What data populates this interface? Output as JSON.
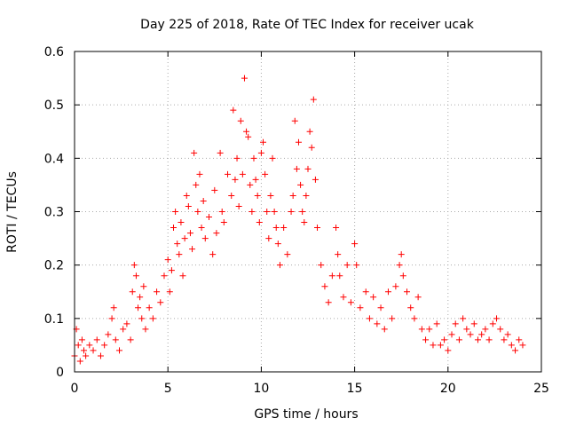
{
  "chart_data": {
    "type": "scatter",
    "title": "Day 225 of 2018, Rate Of TEC Index for receiver ucak",
    "xlabel": "GPS time / hours",
    "ylabel": "ROTI / TECUs",
    "xlim": [
      0,
      25
    ],
    "ylim": [
      0,
      0.6
    ],
    "x_ticks": [
      "0",
      "5",
      "10",
      "15",
      "20",
      "25"
    ],
    "y_ticks": [
      "0",
      "0.1",
      "0.2",
      "0.3",
      "0.4",
      "0.5",
      "0.6"
    ],
    "grid": true,
    "marker": "+",
    "color": "#ff0000",
    "series": [
      {
        "points": [
          [
            0.0,
            0.03
          ],
          [
            0.1,
            0.08
          ],
          [
            0.2,
            0.05
          ],
          [
            0.3,
            0.02
          ],
          [
            0.4,
            0.06
          ],
          [
            0.5,
            0.04
          ],
          [
            0.6,
            0.03
          ],
          [
            0.8,
            0.05
          ],
          [
            1.0,
            0.04
          ],
          [
            1.2,
            0.06
          ],
          [
            1.4,
            0.03
          ],
          [
            1.6,
            0.05
          ],
          [
            1.8,
            0.07
          ],
          [
            2.0,
            0.1
          ],
          [
            2.1,
            0.12
          ],
          [
            2.2,
            0.06
          ],
          [
            2.4,
            0.04
          ],
          [
            2.6,
            0.08
          ],
          [
            2.8,
            0.09
          ],
          [
            3.0,
            0.06
          ],
          [
            3.1,
            0.15
          ],
          [
            3.2,
            0.2
          ],
          [
            3.3,
            0.18
          ],
          [
            3.4,
            0.12
          ],
          [
            3.5,
            0.14
          ],
          [
            3.6,
            0.1
          ],
          [
            3.7,
            0.16
          ],
          [
            3.8,
            0.08
          ],
          [
            4.0,
            0.12
          ],
          [
            4.2,
            0.1
          ],
          [
            4.4,
            0.15
          ],
          [
            4.6,
            0.13
          ],
          [
            4.8,
            0.18
          ],
          [
            5.0,
            0.21
          ],
          [
            5.1,
            0.15
          ],
          [
            5.2,
            0.19
          ],
          [
            5.3,
            0.27
          ],
          [
            5.4,
            0.3
          ],
          [
            5.5,
            0.24
          ],
          [
            5.6,
            0.22
          ],
          [
            5.7,
            0.28
          ],
          [
            5.8,
            0.18
          ],
          [
            5.9,
            0.25
          ],
          [
            6.0,
            0.33
          ],
          [
            6.1,
            0.31
          ],
          [
            6.2,
            0.26
          ],
          [
            6.3,
            0.23
          ],
          [
            6.4,
            0.41
          ],
          [
            6.5,
            0.35
          ],
          [
            6.6,
            0.3
          ],
          [
            6.7,
            0.37
          ],
          [
            6.8,
            0.27
          ],
          [
            6.9,
            0.32
          ],
          [
            7.0,
            0.25
          ],
          [
            7.2,
            0.29
          ],
          [
            7.4,
            0.22
          ],
          [
            7.5,
            0.34
          ],
          [
            7.6,
            0.26
          ],
          [
            7.8,
            0.41
          ],
          [
            7.9,
            0.3
          ],
          [
            8.0,
            0.28
          ],
          [
            8.2,
            0.37
          ],
          [
            8.4,
            0.33
          ],
          [
            8.5,
            0.49
          ],
          [
            8.6,
            0.36
          ],
          [
            8.7,
            0.4
          ],
          [
            8.8,
            0.31
          ],
          [
            8.9,
            0.47
          ],
          [
            9.0,
            0.37
          ],
          [
            9.1,
            0.55
          ],
          [
            9.2,
            0.45
          ],
          [
            9.3,
            0.44
          ],
          [
            9.4,
            0.35
          ],
          [
            9.5,
            0.3
          ],
          [
            9.6,
            0.4
          ],
          [
            9.7,
            0.36
          ],
          [
            9.8,
            0.33
          ],
          [
            9.9,
            0.28
          ],
          [
            10.0,
            0.41
          ],
          [
            10.1,
            0.43
          ],
          [
            10.2,
            0.37
          ],
          [
            10.3,
            0.3
          ],
          [
            10.4,
            0.25
          ],
          [
            10.5,
            0.33
          ],
          [
            10.6,
            0.4
          ],
          [
            10.7,
            0.3
          ],
          [
            10.8,
            0.27
          ],
          [
            10.9,
            0.24
          ],
          [
            11.0,
            0.2
          ],
          [
            11.2,
            0.27
          ],
          [
            11.4,
            0.22
          ],
          [
            11.6,
            0.3
          ],
          [
            11.7,
            0.33
          ],
          [
            11.8,
            0.47
          ],
          [
            11.9,
            0.38
          ],
          [
            12.0,
            0.43
          ],
          [
            12.1,
            0.35
          ],
          [
            12.2,
            0.3
          ],
          [
            12.3,
            0.28
          ],
          [
            12.4,
            0.33
          ],
          [
            12.5,
            0.38
          ],
          [
            12.6,
            0.45
          ],
          [
            12.7,
            0.42
          ],
          [
            12.8,
            0.51
          ],
          [
            12.9,
            0.36
          ],
          [
            13.0,
            0.27
          ],
          [
            13.2,
            0.2
          ],
          [
            13.4,
            0.16
          ],
          [
            13.6,
            0.13
          ],
          [
            13.8,
            0.18
          ],
          [
            14.0,
            0.27
          ],
          [
            14.1,
            0.22
          ],
          [
            14.2,
            0.18
          ],
          [
            14.4,
            0.14
          ],
          [
            14.6,
            0.2
          ],
          [
            14.8,
            0.13
          ],
          [
            15.0,
            0.24
          ],
          [
            15.1,
            0.2
          ],
          [
            15.3,
            0.12
          ],
          [
            15.6,
            0.15
          ],
          [
            15.8,
            0.1
          ],
          [
            16.0,
            0.14
          ],
          [
            16.2,
            0.09
          ],
          [
            16.4,
            0.12
          ],
          [
            16.6,
            0.08
          ],
          [
            16.8,
            0.15
          ],
          [
            17.0,
            0.1
          ],
          [
            17.2,
            0.16
          ],
          [
            17.4,
            0.2
          ],
          [
            17.5,
            0.22
          ],
          [
            17.6,
            0.18
          ],
          [
            17.8,
            0.15
          ],
          [
            18.0,
            0.12
          ],
          [
            18.2,
            0.1
          ],
          [
            18.4,
            0.14
          ],
          [
            18.6,
            0.08
          ],
          [
            18.8,
            0.06
          ],
          [
            19.0,
            0.08
          ],
          [
            19.2,
            0.05
          ],
          [
            19.4,
            0.09
          ],
          [
            19.6,
            0.05
          ],
          [
            19.8,
            0.06
          ],
          [
            20.0,
            0.04
          ],
          [
            20.2,
            0.07
          ],
          [
            20.4,
            0.09
          ],
          [
            20.6,
            0.06
          ],
          [
            20.8,
            0.1
          ],
          [
            21.0,
            0.08
          ],
          [
            21.2,
            0.07
          ],
          [
            21.4,
            0.09
          ],
          [
            21.6,
            0.06
          ],
          [
            21.8,
            0.07
          ],
          [
            22.0,
            0.08
          ],
          [
            22.2,
            0.06
          ],
          [
            22.4,
            0.09
          ],
          [
            22.6,
            0.1
          ],
          [
            22.8,
            0.08
          ],
          [
            23.0,
            0.06
          ],
          [
            23.2,
            0.07
          ],
          [
            23.4,
            0.05
          ],
          [
            23.6,
            0.04
          ],
          [
            23.8,
            0.06
          ],
          [
            24.0,
            0.05
          ]
        ]
      }
    ]
  }
}
